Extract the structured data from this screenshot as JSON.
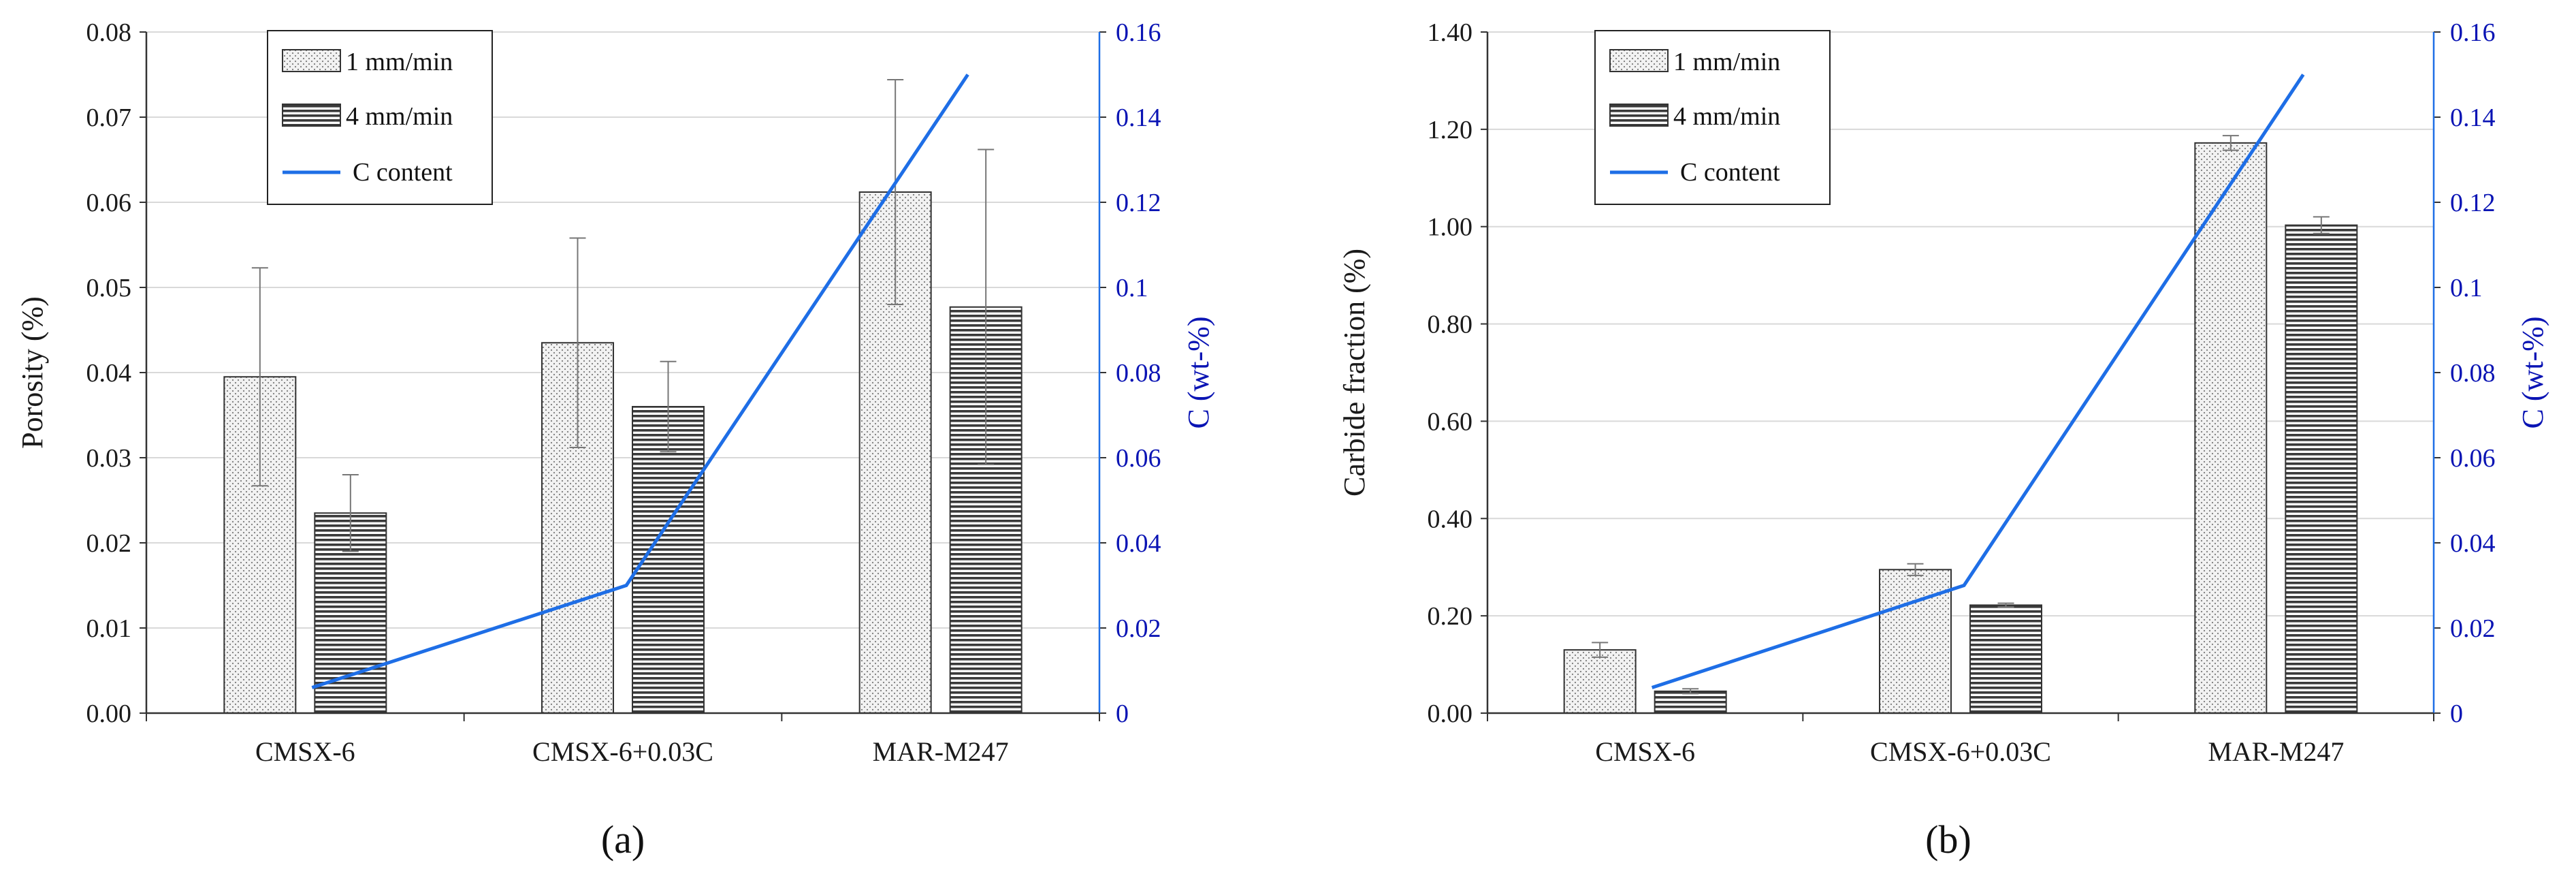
{
  "colors": {
    "c_line": "#1e6ee6",
    "right_axis_text": "#0a14b4",
    "axis": "#333333",
    "grid": "#d9d9d9",
    "bar_border": "#333333"
  },
  "chart_data": [
    {
      "type": "bar",
      "panel_label": "(a)",
      "categories": [
        "CMSX-6",
        "CMSX-6+0.03C",
        "MAR-M247"
      ],
      "series": [
        {
          "name": "1 mm/min",
          "pattern": "dotted",
          "values": [
            0.0395,
            0.0435,
            0.0612
          ],
          "errors": [
            0.0128,
            0.0123,
            0.0132
          ]
        },
        {
          "name": "4 mm/min",
          "pattern": "horizontal-lines",
          "values": [
            0.0235,
            0.036,
            0.0477
          ],
          "errors": [
            0.0045,
            0.0053,
            0.0185
          ]
        }
      ],
      "line_series": {
        "name": "C content",
        "values": [
          0.006,
          0.03,
          0.15
        ],
        "axis": "right"
      },
      "ylabel": "Porosity (%)",
      "ylabel_right": "C (wt-%)",
      "ylim": [
        0,
        0.08
      ],
      "ylim_right": [
        0,
        0.16
      ],
      "yticks": [
        "0.00",
        "0.01",
        "0.02",
        "0.03",
        "0.04",
        "0.05",
        "0.06",
        "0.07",
        "0.08"
      ],
      "yticks_right": [
        "0",
        "0.02",
        "0.04",
        "0.06",
        "0.08",
        "0.1",
        "0.12",
        "0.14",
        "0.16"
      ],
      "grid": true,
      "legend": "top-left"
    },
    {
      "type": "bar",
      "panel_label": "(b)",
      "categories": [
        "CMSX-6",
        "CMSX-6+0.03C",
        "MAR-M247"
      ],
      "series": [
        {
          "name": "1 mm/min",
          "pattern": "dotted",
          "values": [
            0.13,
            0.295,
            1.172
          ],
          "errors": [
            0.015,
            0.012,
            0.015
          ]
        },
        {
          "name": "4 mm/min",
          "pattern": "horizontal-lines",
          "values": [
            0.045,
            0.222,
            1.003
          ],
          "errors": [
            0.005,
            0.004,
            0.017
          ]
        }
      ],
      "line_series": {
        "name": "C content",
        "values": [
          0.006,
          0.03,
          0.15
        ],
        "axis": "right"
      },
      "ylabel": "Carbide fraction (%)",
      "ylabel_right": "C (wt-%)",
      "ylim": [
        0,
        1.4
      ],
      "ylim_right": [
        0,
        0.16
      ],
      "yticks": [
        "0.00",
        "0.20",
        "0.40",
        "0.60",
        "0.80",
        "1.00",
        "1.20",
        "1.40"
      ],
      "yticks_right": [
        "0",
        "0.02",
        "0.04",
        "0.06",
        "0.08",
        "0.1",
        "0.12",
        "0.14",
        "0.16"
      ],
      "grid": true,
      "legend": "top-left"
    }
  ]
}
